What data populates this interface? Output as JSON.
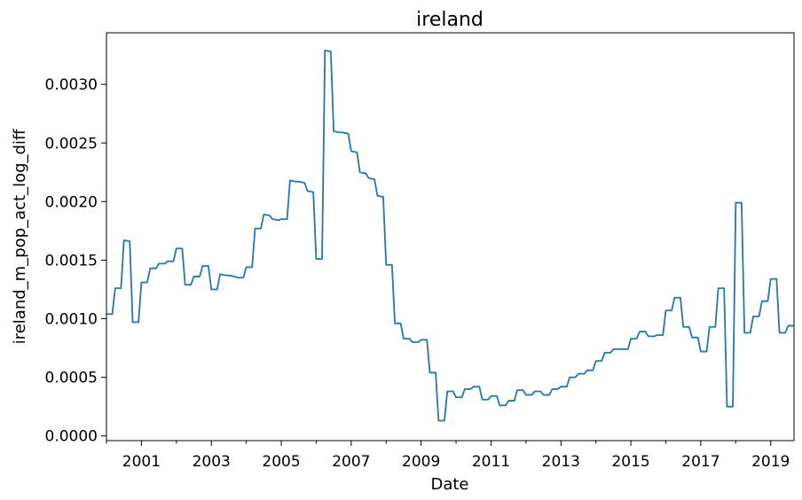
{
  "chart_data": {
    "type": "line",
    "title": "ireland",
    "xlabel": "Date",
    "ylabel": "ireland_m_pop_act_log_diff",
    "xlim": [
      "2000-01",
      "2019-09"
    ],
    "ylim": [
      -4e-05,
      0.00344
    ],
    "x_ticks": [
      "2001",
      "2003",
      "2005",
      "2007",
      "2009",
      "2011",
      "2013",
      "2015",
      "2017",
      "2019"
    ],
    "y_ticks": [
      "0.0000",
      "0.0005",
      "0.0010",
      "0.0015",
      "0.0020",
      "0.0025",
      "0.0030"
    ],
    "grid": false,
    "legend": "none",
    "series": [
      {
        "color": "#1f77b4",
        "points": [
          [
            "2000-01",
            0.00104
          ],
          [
            "2000-03",
            0.00104
          ],
          [
            "2000-04",
            0.00126
          ],
          [
            "2000-06",
            0.00126
          ],
          [
            "2000-07",
            0.00167
          ],
          [
            "2000-09",
            0.00166
          ],
          [
            "2000-10",
            0.00097
          ],
          [
            "2000-12",
            0.00097
          ],
          [
            "2001-01",
            0.00131
          ],
          [
            "2001-03",
            0.00131
          ],
          [
            "2001-04",
            0.00143
          ],
          [
            "2001-06",
            0.00143
          ],
          [
            "2001-07",
            0.00147
          ],
          [
            "2001-09",
            0.00147
          ],
          [
            "2001-10",
            0.00149
          ],
          [
            "2001-12",
            0.00149
          ],
          [
            "2002-01",
            0.0016
          ],
          [
            "2002-03",
            0.0016
          ],
          [
            "2002-04",
            0.00129
          ],
          [
            "2002-06",
            0.00129
          ],
          [
            "2002-07",
            0.00136
          ],
          [
            "2002-09",
            0.00136
          ],
          [
            "2002-10",
            0.00145
          ],
          [
            "2002-12",
            0.00145
          ],
          [
            "2003-01",
            0.00125
          ],
          [
            "2003-03",
            0.00125
          ],
          [
            "2003-04",
            0.00138
          ],
          [
            "2003-06",
            0.00137
          ],
          [
            "2003-07",
            0.00137
          ],
          [
            "2003-09",
            0.00136
          ],
          [
            "2003-10",
            0.00135
          ],
          [
            "2003-12",
            0.00135
          ],
          [
            "2004-01",
            0.00144
          ],
          [
            "2004-03",
            0.00144
          ],
          [
            "2004-04",
            0.00177
          ],
          [
            "2004-06",
            0.00177
          ],
          [
            "2004-07",
            0.00189
          ],
          [
            "2004-09",
            0.00188
          ],
          [
            "2004-10",
            0.00185
          ],
          [
            "2004-12",
            0.00184
          ],
          [
            "2005-01",
            0.00185
          ],
          [
            "2005-03",
            0.00185
          ],
          [
            "2005-04",
            0.00218
          ],
          [
            "2005-06",
            0.00217
          ],
          [
            "2005-07",
            0.00217
          ],
          [
            "2005-09",
            0.00216
          ],
          [
            "2005-10",
            0.00209
          ],
          [
            "2005-12",
            0.00208
          ],
          [
            "2006-01",
            0.00151
          ],
          [
            "2006-03",
            0.00151
          ],
          [
            "2006-04",
            0.00329
          ],
          [
            "2006-06",
            0.00328
          ],
          [
            "2006-07",
            0.0026
          ],
          [
            "2006-09",
            0.00259
          ],
          [
            "2006-10",
            0.00259
          ],
          [
            "2006-12",
            0.00258
          ],
          [
            "2007-01",
            0.00243
          ],
          [
            "2007-03",
            0.00242
          ],
          [
            "2007-04",
            0.00225
          ],
          [
            "2007-06",
            0.00224
          ],
          [
            "2007-07",
            0.0022
          ],
          [
            "2007-09",
            0.00219
          ],
          [
            "2007-10",
            0.00205
          ],
          [
            "2007-12",
            0.00204
          ],
          [
            "2008-01",
            0.00146
          ],
          [
            "2008-03",
            0.00146
          ],
          [
            "2008-04",
            0.00096
          ],
          [
            "2008-06",
            0.00096
          ],
          [
            "2008-07",
            0.00083
          ],
          [
            "2008-09",
            0.00083
          ],
          [
            "2008-10",
            0.0008
          ],
          [
            "2008-12",
            0.0008
          ],
          [
            "2009-01",
            0.00082
          ],
          [
            "2009-03",
            0.00082
          ],
          [
            "2009-04",
            0.00054
          ],
          [
            "2009-06",
            0.00054
          ],
          [
            "2009-07",
            0.00013
          ],
          [
            "2009-09",
            0.00013
          ],
          [
            "2009-10",
            0.00038
          ],
          [
            "2009-12",
            0.00038
          ],
          [
            "2010-01",
            0.00033
          ],
          [
            "2010-03",
            0.00033
          ],
          [
            "2010-04",
            0.0004
          ],
          [
            "2010-06",
            0.0004
          ],
          [
            "2010-07",
            0.00042
          ],
          [
            "2010-09",
            0.00042
          ],
          [
            "2010-10",
            0.00031
          ],
          [
            "2010-12",
            0.00031
          ],
          [
            "2011-01",
            0.00034
          ],
          [
            "2011-03",
            0.00034
          ],
          [
            "2011-04",
            0.00026
          ],
          [
            "2011-06",
            0.00026
          ],
          [
            "2011-07",
            0.0003
          ],
          [
            "2011-09",
            0.0003
          ],
          [
            "2011-10",
            0.00039
          ],
          [
            "2011-12",
            0.00039
          ],
          [
            "2012-01",
            0.00035
          ],
          [
            "2012-03",
            0.00035
          ],
          [
            "2012-04",
            0.00038
          ],
          [
            "2012-06",
            0.00038
          ],
          [
            "2012-07",
            0.00035
          ],
          [
            "2012-09",
            0.00035
          ],
          [
            "2012-10",
            0.0004
          ],
          [
            "2012-12",
            0.0004
          ],
          [
            "2013-01",
            0.00042
          ],
          [
            "2013-03",
            0.00042
          ],
          [
            "2013-04",
            0.0005
          ],
          [
            "2013-06",
            0.0005
          ],
          [
            "2013-07",
            0.00053
          ],
          [
            "2013-09",
            0.00053
          ],
          [
            "2013-10",
            0.00056
          ],
          [
            "2013-12",
            0.00056
          ],
          [
            "2014-01",
            0.00064
          ],
          [
            "2014-03",
            0.00064
          ],
          [
            "2014-04",
            0.00071
          ],
          [
            "2014-06",
            0.00071
          ],
          [
            "2014-07",
            0.00074
          ],
          [
            "2014-09",
            0.00074
          ],
          [
            "2014-10",
            0.00074
          ],
          [
            "2014-12",
            0.00074
          ],
          [
            "2015-01",
            0.00083
          ],
          [
            "2015-03",
            0.00083
          ],
          [
            "2015-04",
            0.00089
          ],
          [
            "2015-06",
            0.00089
          ],
          [
            "2015-07",
            0.00085
          ],
          [
            "2015-09",
            0.00085
          ],
          [
            "2015-10",
            0.00086
          ],
          [
            "2015-12",
            0.00086
          ],
          [
            "2016-01",
            0.00107
          ],
          [
            "2016-03",
            0.00107
          ],
          [
            "2016-04",
            0.00118
          ],
          [
            "2016-06",
            0.00118
          ],
          [
            "2016-07",
            0.00093
          ],
          [
            "2016-09",
            0.00093
          ],
          [
            "2016-10",
            0.00084
          ],
          [
            "2016-12",
            0.00084
          ],
          [
            "2017-01",
            0.00072
          ],
          [
            "2017-03",
            0.00072
          ],
          [
            "2017-04",
            0.00093
          ],
          [
            "2017-06",
            0.00093
          ],
          [
            "2017-07",
            0.00126
          ],
          [
            "2017-09",
            0.00126
          ],
          [
            "2017-10",
            0.00025
          ],
          [
            "2017-12",
            0.00025
          ],
          [
            "2018-01",
            0.00199
          ],
          [
            "2018-03",
            0.00199
          ],
          [
            "2018-04",
            0.00088
          ],
          [
            "2018-06",
            0.00088
          ],
          [
            "2018-07",
            0.00102
          ],
          [
            "2018-09",
            0.00102
          ],
          [
            "2018-10",
            0.00115
          ],
          [
            "2018-12",
            0.00115
          ],
          [
            "2019-01",
            0.00134
          ],
          [
            "2019-03",
            0.00134
          ],
          [
            "2019-04",
            0.00088
          ],
          [
            "2019-06",
            0.00088
          ],
          [
            "2019-07",
            0.00094
          ],
          [
            "2019-09",
            0.00094
          ]
        ]
      }
    ]
  }
}
